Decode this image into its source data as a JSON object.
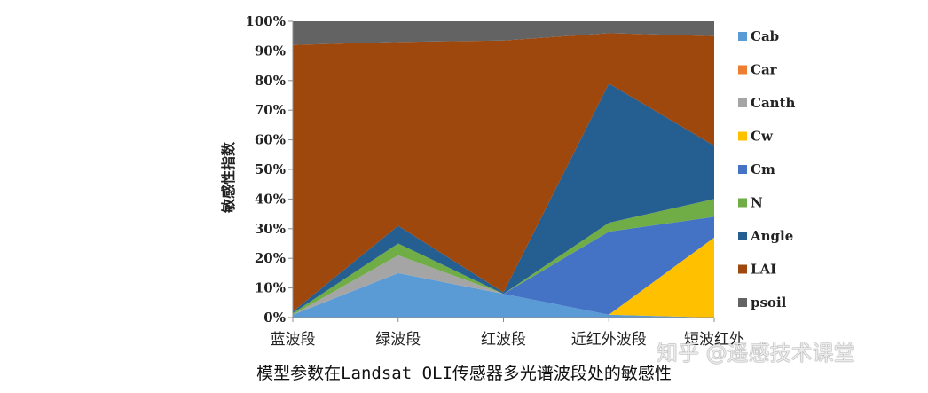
{
  "caption": "模型参数在Landsat OLI传感器多光谱波段处的敏感性",
  "watermark": "知乎 @遥感技术课堂",
  "chart_data": {
    "type": "area",
    "stacked": "percent",
    "ylabel": "敏感性指数",
    "ylim": [
      0,
      100
    ],
    "yticks": [
      "0%",
      "10%",
      "20%",
      "30%",
      "40%",
      "50%",
      "60%",
      "70%",
      "80%",
      "90%",
      "100%"
    ],
    "categories": [
      "蓝波段",
      "绿波段",
      "红波段",
      "近红外波段",
      "短波红外"
    ],
    "legend_position": "right",
    "series": [
      {
        "name": "Cab",
        "color": "#5b9bd5",
        "values": [
          1,
          15,
          8,
          1,
          0
        ]
      },
      {
        "name": "Car",
        "color": "#ed7d31",
        "values": [
          0,
          0,
          0,
          0,
          0
        ]
      },
      {
        "name": "Canth",
        "color": "#a5a5a5",
        "values": [
          0,
          6,
          0,
          0,
          0
        ]
      },
      {
        "name": "Cw",
        "color": "#ffc000",
        "values": [
          0,
          0,
          0,
          0,
          27
        ]
      },
      {
        "name": "Cm",
        "color": "#4472c4",
        "values": [
          0,
          0,
          0,
          28,
          7
        ]
      },
      {
        "name": "N",
        "color": "#70ad47",
        "values": [
          0.5,
          4,
          0,
          3,
          6
        ]
      },
      {
        "name": "Angle",
        "color": "#255e91",
        "values": [
          0.5,
          6,
          0.5,
          47,
          18
        ]
      },
      {
        "name": "LAI",
        "color": "#9e480e",
        "values": [
          90,
          62,
          85,
          17,
          37
        ]
      },
      {
        "name": "psoil",
        "color": "#636363",
        "values": [
          8,
          7,
          6.5,
          4,
          5
        ]
      }
    ]
  }
}
